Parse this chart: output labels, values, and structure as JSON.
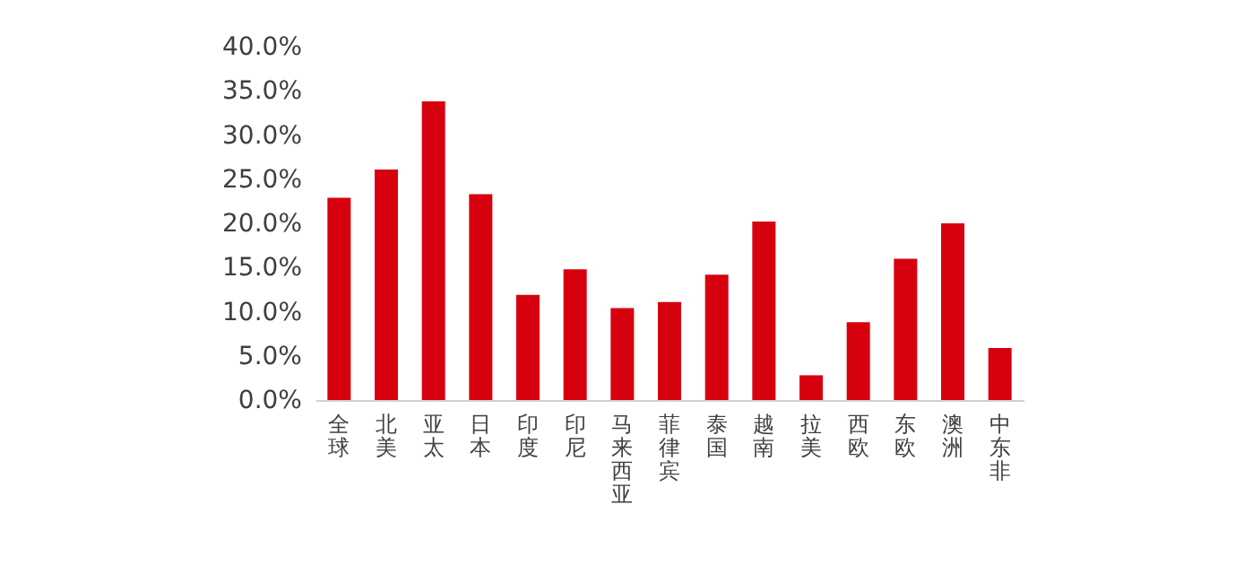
{
  "chart_data": {
    "type": "bar",
    "categories": [
      "全球",
      "北美",
      "亚太",
      "日本",
      "印度",
      "印尼",
      "马来西亚",
      "菲律宾",
      "泰国",
      "越南",
      "拉美",
      "西欧",
      "东欧",
      "澳洲",
      "中东非"
    ],
    "values": [
      22.9,
      26.1,
      33.8,
      23.3,
      11.9,
      14.8,
      10.4,
      11.1,
      14.2,
      20.2,
      2.8,
      8.8,
      16.0,
      20.0,
      5.9
    ],
    "color": "#d7000f",
    "ylim": [
      0,
      40
    ],
    "yticks": [
      {
        "value": 0,
        "label": "0.0%"
      },
      {
        "value": 5,
        "label": "5.0%"
      },
      {
        "value": 10,
        "label": "10.0%"
      },
      {
        "value": 15,
        "label": "15.0%"
      },
      {
        "value": 20,
        "label": "20.0%"
      },
      {
        "value": 25,
        "label": "25.0%"
      },
      {
        "value": 30,
        "label": "30.0%"
      },
      {
        "value": 35,
        "label": "35.0%"
      },
      {
        "value": 40,
        "label": "40.0%"
      }
    ],
    "grid": false
  }
}
